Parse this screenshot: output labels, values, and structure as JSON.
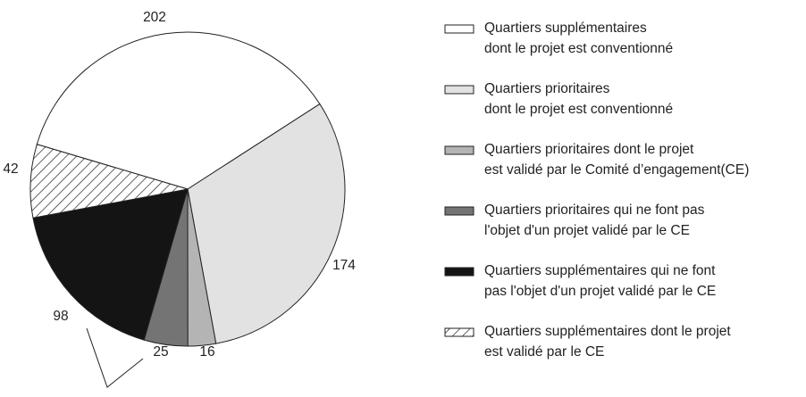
{
  "chart_data": {
    "type": "pie",
    "categories": [
      [
        "Quartiers supplémentaires",
        "dont le projet est conventionné"
      ],
      [
        "Quartiers prioritaires",
        "dont le projet est conventionné"
      ],
      [
        "Quartiers prioritaires dont le projet",
        "est validé par le Comité d’engagement(CE)"
      ],
      [
        "Quartiers prioritaires qui ne font pas",
        "l'objet d'un projet validé par le CE"
      ],
      [
        "Quartiers supplémentaires qui ne font",
        "pas l'objet d'un projet validé par le CE"
      ],
      [
        "Quartiers supplémentaires dont le projet",
        "est validé par le CE"
      ]
    ],
    "values": [
      202,
      174,
      16,
      25,
      98,
      42
    ],
    "colors": [
      "#ffffff",
      "#e2e2e2",
      "#b4b4b4",
      "#747474",
      "#141414",
      "#ffffff"
    ],
    "hatch": [
      false,
      false,
      false,
      false,
      false,
      true
    ],
    "start_angle": -73.4,
    "legend": "right"
  }
}
